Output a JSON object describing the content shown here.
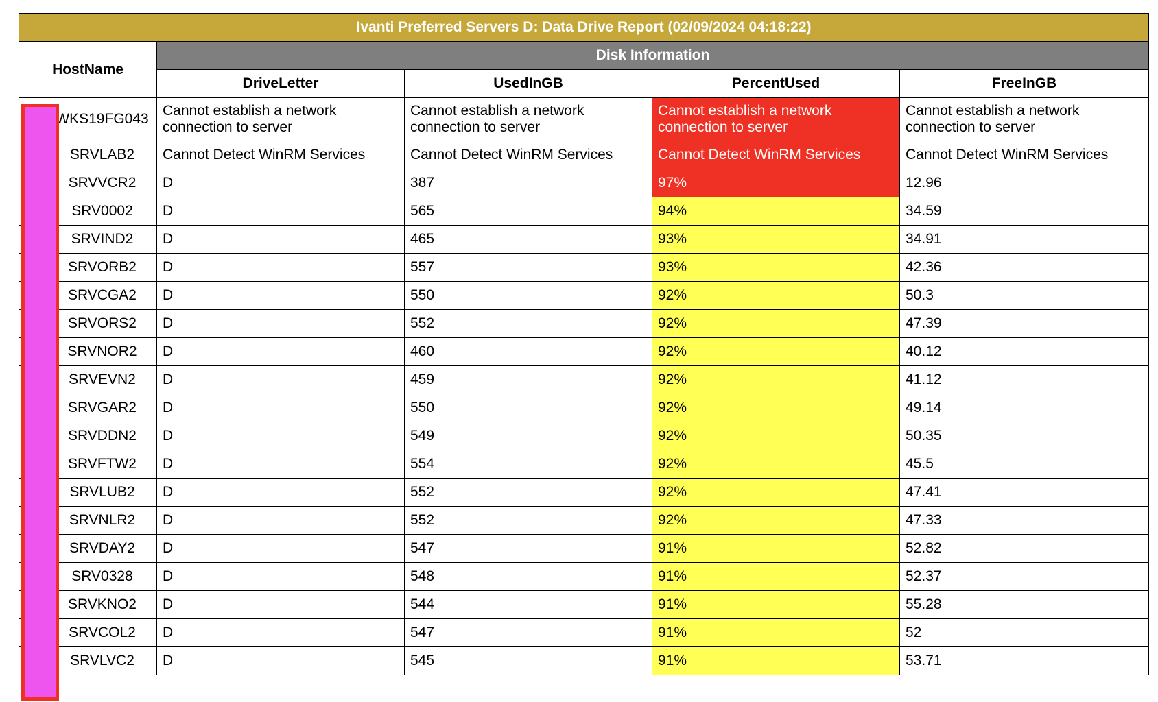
{
  "report": {
    "title": "Ivanti Preferred Servers D: Data Drive Report (02/09/2024 04:18:22)",
    "hostname_header": "HostName",
    "group_header": "Disk Information",
    "columns": [
      "DriveLetter",
      "UsedInGB",
      "PercentUsed",
      "FreeInGB"
    ],
    "rows": [
      {
        "host": "WKS19FG043",
        "drive": "Cannot establish a network connection to server",
        "used": "Cannot establish a network connection to server",
        "percent": "Cannot establish a network connection to server",
        "free": "Cannot establish a network connection to server",
        "status": "red"
      },
      {
        "host": "SRVLAB2",
        "drive": "Cannot Detect WinRM Services",
        "used": "Cannot Detect WinRM Services",
        "percent": "Cannot Detect WinRM Services",
        "free": "Cannot Detect WinRM Services",
        "status": "red"
      },
      {
        "host": "SRVVCR2",
        "drive": "D",
        "used": "387",
        "percent": "97%",
        "free": "12.96",
        "status": "red"
      },
      {
        "host": "SRV0002",
        "drive": "D",
        "used": "565",
        "percent": "94%",
        "free": "34.59",
        "status": "yellow"
      },
      {
        "host": "SRVIND2",
        "drive": "D",
        "used": "465",
        "percent": "93%",
        "free": "34.91",
        "status": "yellow"
      },
      {
        "host": "SRVORB2",
        "drive": "D",
        "used": "557",
        "percent": "93%",
        "free": "42.36",
        "status": "yellow"
      },
      {
        "host": "SRVCGA2",
        "drive": "D",
        "used": "550",
        "percent": "92%",
        "free": "50.3",
        "status": "yellow"
      },
      {
        "host": "SRVORS2",
        "drive": "D",
        "used": "552",
        "percent": "92%",
        "free": "47.39",
        "status": "yellow"
      },
      {
        "host": "SRVNOR2",
        "drive": "D",
        "used": "460",
        "percent": "92%",
        "free": "40.12",
        "status": "yellow"
      },
      {
        "host": "SRVEVN2",
        "drive": "D",
        "used": "459",
        "percent": "92%",
        "free": "41.12",
        "status": "yellow"
      },
      {
        "host": "SRVGAR2",
        "drive": "D",
        "used": "550",
        "percent": "92%",
        "free": "49.14",
        "status": "yellow"
      },
      {
        "host": "SRVDDN2",
        "drive": "D",
        "used": "549",
        "percent": "92%",
        "free": "50.35",
        "status": "yellow"
      },
      {
        "host": "SRVFTW2",
        "drive": "D",
        "used": "554",
        "percent": "92%",
        "free": "45.5",
        "status": "yellow"
      },
      {
        "host": "SRVLUB2",
        "drive": "D",
        "used": "552",
        "percent": "92%",
        "free": "47.41",
        "status": "yellow"
      },
      {
        "host": "SRVNLR2",
        "drive": "D",
        "used": "552",
        "percent": "92%",
        "free": "47.33",
        "status": "yellow"
      },
      {
        "host": "SRVDAY2",
        "drive": "D",
        "used": "547",
        "percent": "91%",
        "free": "52.82",
        "status": "yellow"
      },
      {
        "host": "SRV0328",
        "drive": "D",
        "used": "548",
        "percent": "91%",
        "free": "52.37",
        "status": "yellow"
      },
      {
        "host": "SRVKNO2",
        "drive": "D",
        "used": "544",
        "percent": "91%",
        "free": "55.28",
        "status": "yellow"
      },
      {
        "host": "SRVCOL2",
        "drive": "D",
        "used": "547",
        "percent": "91%",
        "free": "52",
        "status": "yellow"
      },
      {
        "host": "SRVLVC2",
        "drive": "D",
        "used": "545",
        "percent": "91%",
        "free": "53.71",
        "status": "yellow"
      }
    ]
  },
  "colors": {
    "title_bg": "#c6a83a",
    "group_bg": "#7f7f7f",
    "critical": "#ee3124",
    "warning": "#ffff55",
    "redaction": "#ee55ee"
  }
}
